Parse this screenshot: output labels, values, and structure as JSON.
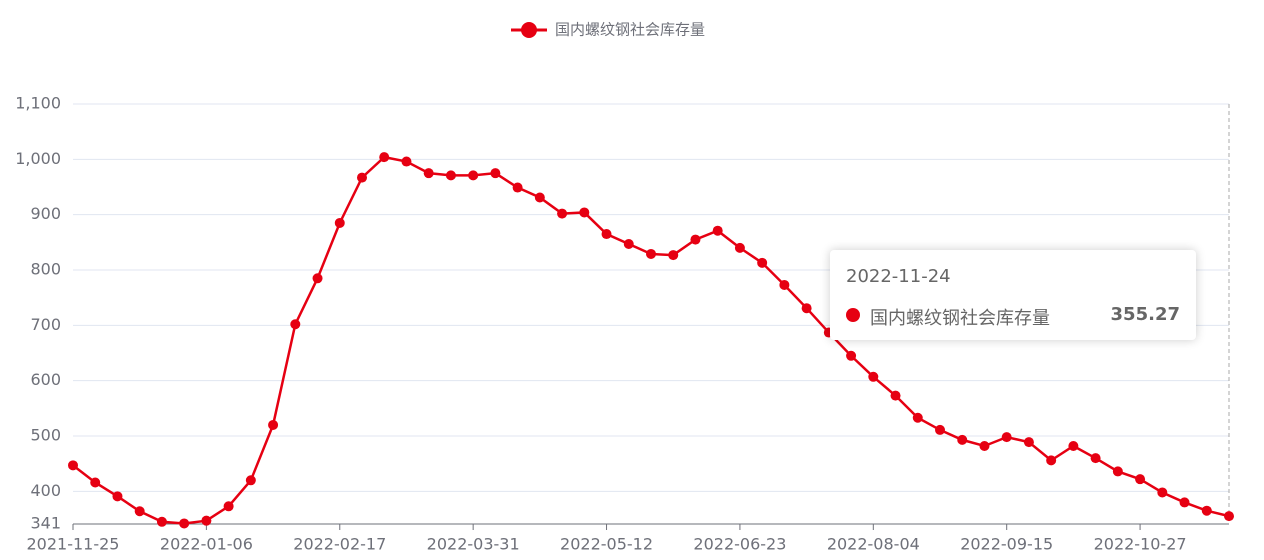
{
  "chart_data": {
    "type": "line",
    "categories": [
      "2021-11-25",
      null,
      null,
      null,
      null,
      null,
      "2022-01-06",
      null,
      null,
      null,
      null,
      null,
      "2022-02-17",
      null,
      null,
      null,
      null,
      null,
      "2022-03-31",
      null,
      null,
      null,
      null,
      null,
      "2022-05-12",
      null,
      null,
      null,
      null,
      null,
      "2022-06-23",
      null,
      null,
      null,
      null,
      null,
      "2022-08-04",
      null,
      null,
      null,
      null,
      null,
      "2022-09-15",
      null,
      null,
      null,
      null,
      null,
      "2022-10-27",
      null,
      null,
      null,
      "2022-11-24"
    ],
    "series": [
      {
        "name": "国内螺纹钢社会库存量",
        "color": "#e60012",
        "values": [
          447,
          416,
          391,
          364,
          345,
          342,
          347,
          373,
          420,
          520,
          702,
          785,
          885,
          967,
          1004,
          996,
          975,
          971,
          971,
          975,
          949,
          931,
          902,
          904,
          865,
          847,
          829,
          827,
          855,
          871,
          840,
          813,
          773,
          731,
          687,
          645,
          607,
          573,
          533,
          511,
          493,
          482,
          498,
          489,
          456,
          482,
          460,
          436,
          422,
          398,
          380,
          365,
          355.27
        ]
      }
    ],
    "ylim": [
      341,
      1100
    ],
    "yticks": [
      341,
      400,
      500,
      600,
      700,
      800,
      900,
      {
        "value": 1000,
        "label": "1,000"
      },
      {
        "value": 1100,
        "label": "1,100"
      }
    ],
    "grid": true
  }
}
